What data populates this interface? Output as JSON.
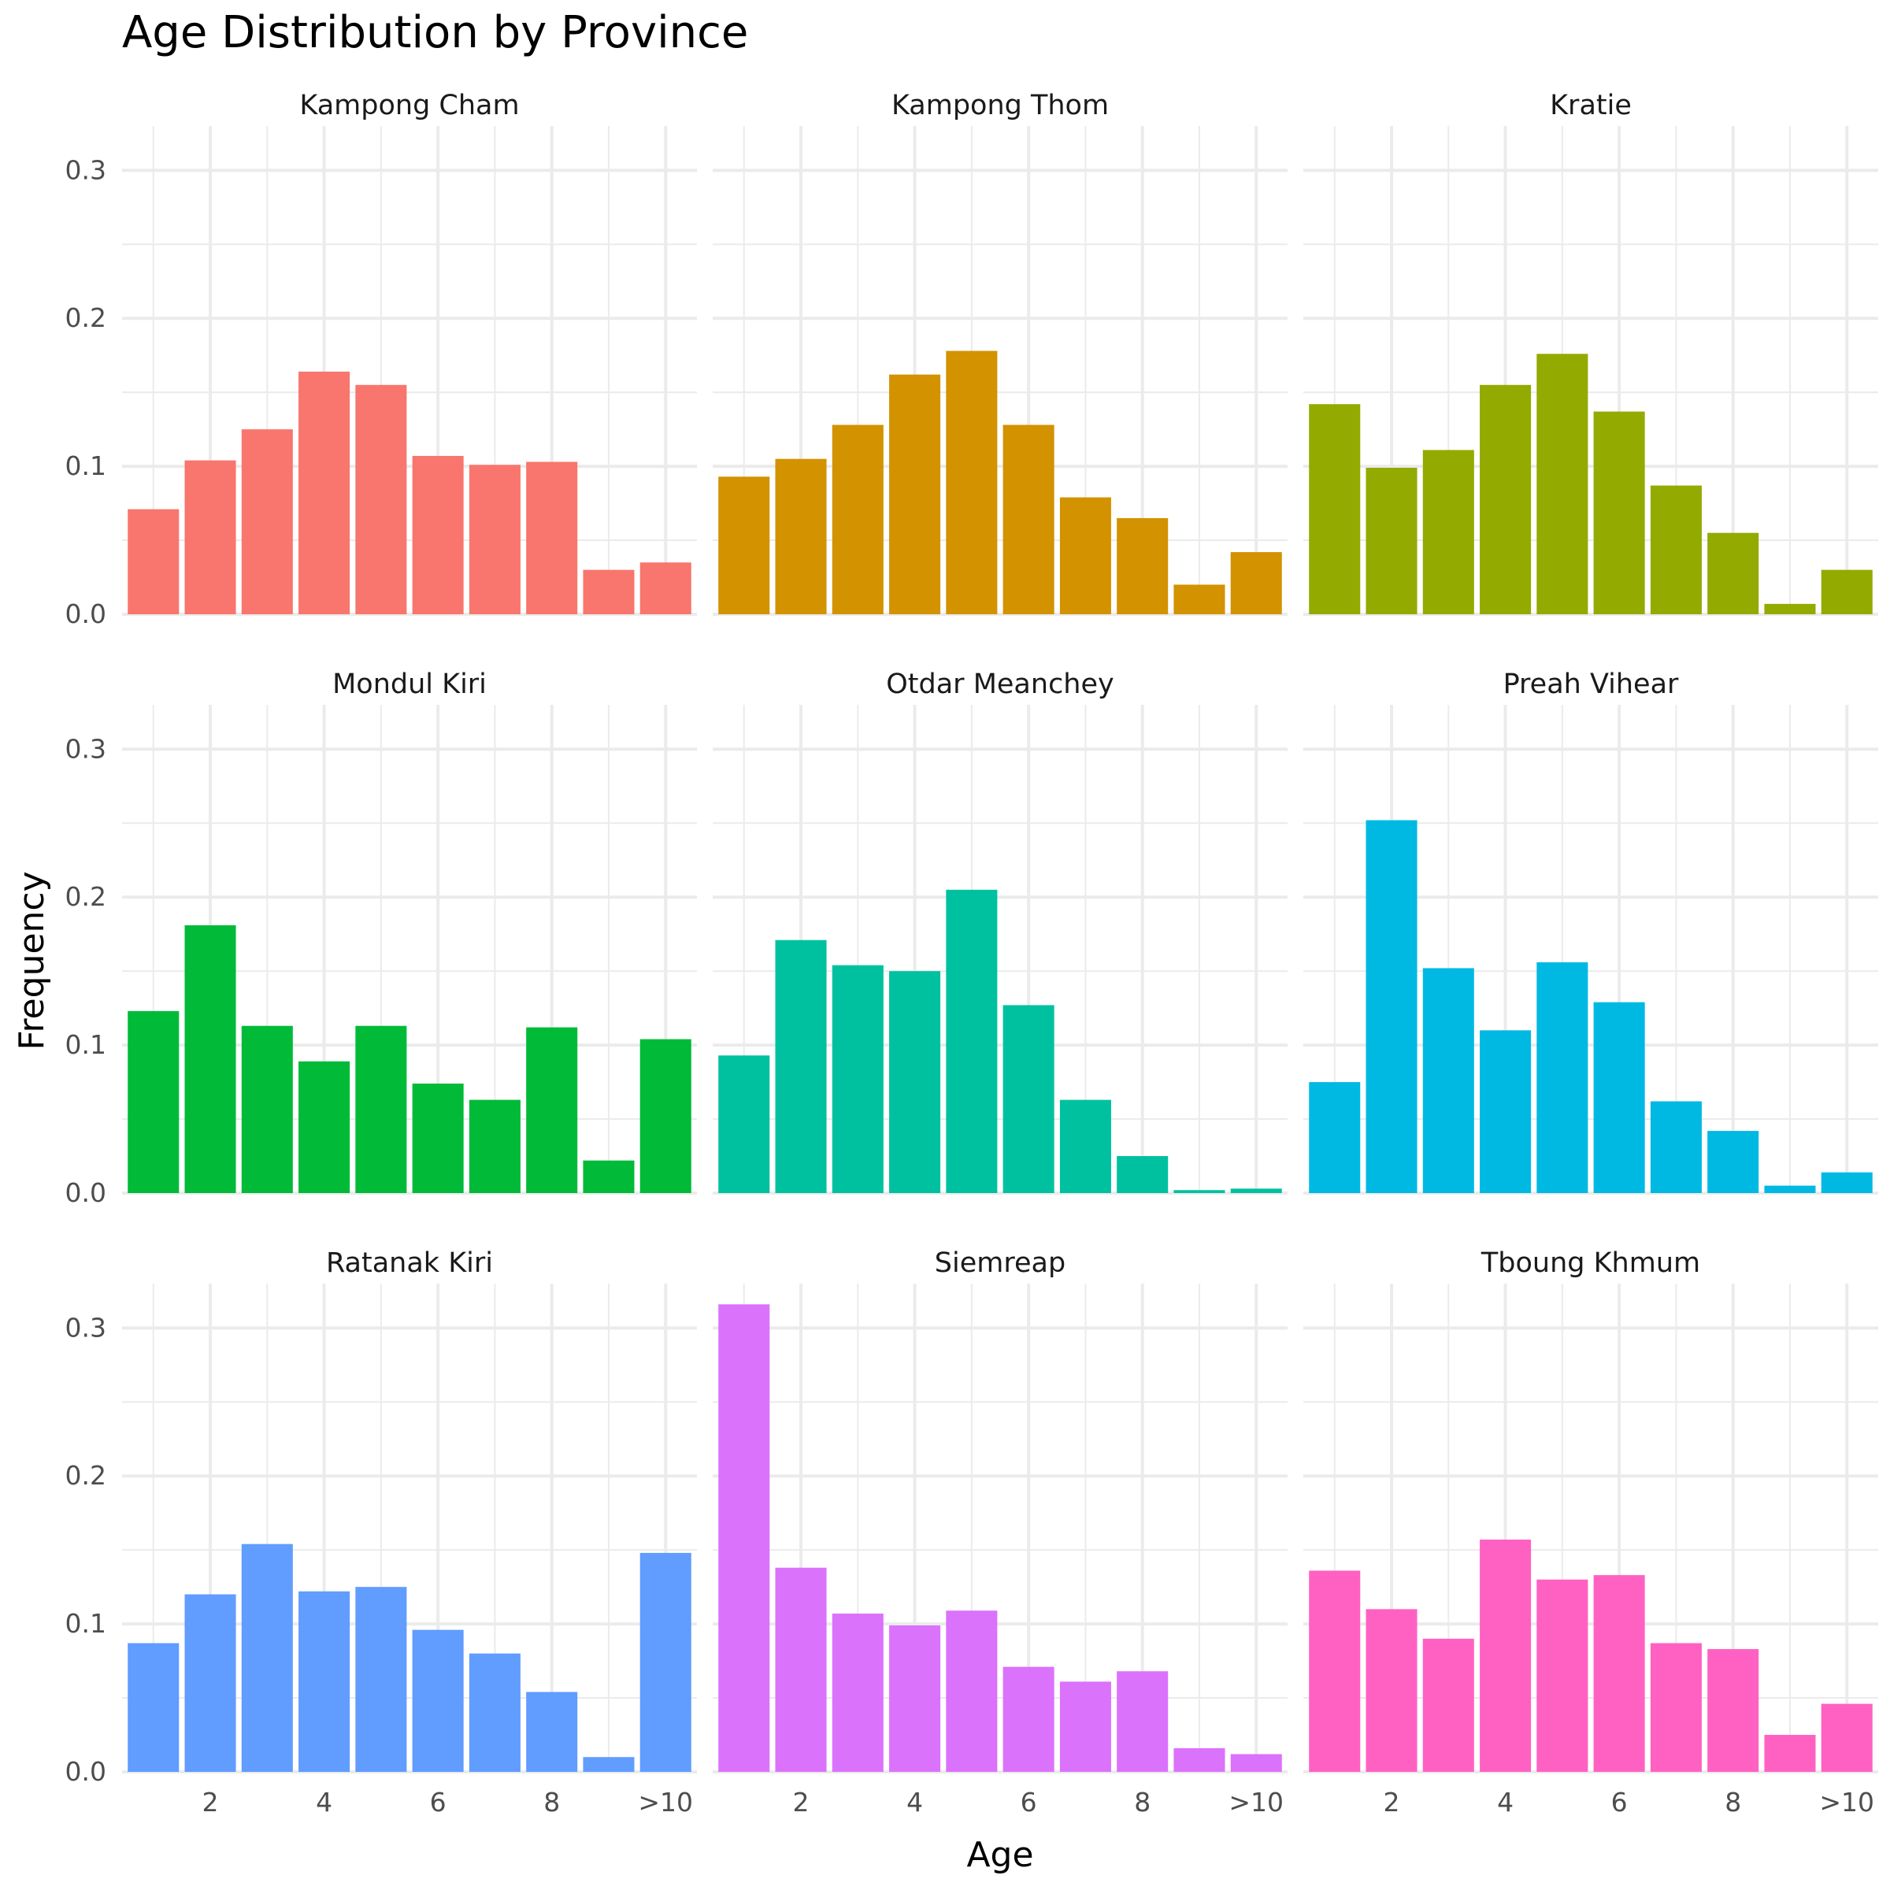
{
  "chart_data": {
    "type": "bar",
    "layout": "facet-grid-3x3",
    "title": "Age Distribution by Province",
    "xlabel": "Age",
    "ylabel": "Frequency",
    "ylim": [
      0,
      0.33
    ],
    "y_ticks": [
      0.0,
      0.1,
      0.2,
      0.3
    ],
    "y_tick_labels": [
      "0.0",
      "0.1",
      "0.2",
      "0.3"
    ],
    "x_categories": [
      "1",
      "2",
      "3",
      "4",
      "5",
      "6",
      "7",
      "8",
      "9",
      ">10"
    ],
    "x_tick_labels": {
      "2": "2",
      "4": "4",
      "6": "6",
      "8": "8",
      ">10": ">10"
    },
    "panels": [
      {
        "name": "Kampong Cham",
        "color": "#F8766D",
        "values": [
          0.071,
          0.104,
          0.125,
          0.164,
          0.155,
          0.107,
          0.101,
          0.103,
          0.03,
          0.035
        ]
      },
      {
        "name": "Kampong Thom",
        "color": "#D39200",
        "values": [
          0.093,
          0.105,
          0.128,
          0.162,
          0.178,
          0.128,
          0.079,
          0.065,
          0.02,
          0.042
        ]
      },
      {
        "name": "Kratie",
        "color": "#93AA00",
        "values": [
          0.142,
          0.099,
          0.111,
          0.155,
          0.176,
          0.137,
          0.087,
          0.055,
          0.007,
          0.03
        ]
      },
      {
        "name": "Mondul Kiri",
        "color": "#00BA38",
        "values": [
          0.123,
          0.181,
          0.113,
          0.089,
          0.113,
          0.074,
          0.063,
          0.112,
          0.022,
          0.104
        ]
      },
      {
        "name": "Otdar Meanchey",
        "color": "#00C19F",
        "values": [
          0.093,
          0.171,
          0.154,
          0.15,
          0.205,
          0.127,
          0.063,
          0.025,
          0.002,
          0.003
        ]
      },
      {
        "name": "Preah Vihear",
        "color": "#00B9E3",
        "values": [
          0.075,
          0.252,
          0.152,
          0.11,
          0.156,
          0.129,
          0.062,
          0.042,
          0.005,
          0.014
        ]
      },
      {
        "name": "Ratanak Kiri",
        "color": "#619CFF",
        "values": [
          0.087,
          0.12,
          0.154,
          0.122,
          0.125,
          0.096,
          0.08,
          0.054,
          0.01,
          0.148
        ]
      },
      {
        "name": "Siemreap",
        "color": "#DB72FB",
        "values": [
          0.316,
          0.138,
          0.107,
          0.099,
          0.109,
          0.071,
          0.061,
          0.068,
          0.016,
          0.012
        ]
      },
      {
        "name": "Tboung Khmum",
        "color": "#FF61C3",
        "values": [
          0.136,
          0.11,
          0.09,
          0.157,
          0.13,
          0.133,
          0.087,
          0.083,
          0.025,
          0.046
        ]
      }
    ]
  }
}
